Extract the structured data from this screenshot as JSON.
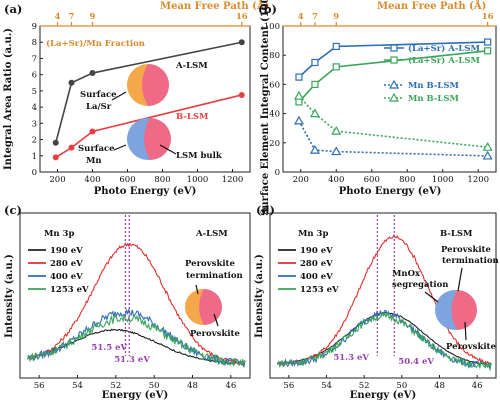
{
  "chart_data": [
    {
      "panel": "(a)",
      "type": "line",
      "top_axis_title": "Mean Free Path (Å)",
      "top_ticks": [
        "4",
        "7",
        "9",
        "16"
      ],
      "top_tick_x": [
        200,
        280,
        400,
        1253
      ],
      "xlabel": "Photo Energy (eV)",
      "ylabel": "Integral Area Ratio (a.u.)",
      "xlim": [
        100,
        1300
      ],
      "ylim": [
        0,
        9
      ],
      "xticks": [
        200,
        400,
        600,
        800,
        1000,
        1200
      ],
      "yticks": [
        0,
        1,
        2,
        3,
        4,
        5,
        6,
        7,
        8,
        9
      ],
      "series": [
        {
          "name": "A-LSM",
          "color": "#444444",
          "x": [
            190,
            280,
            400,
            1253
          ],
          "y": [
            1.8,
            5.5,
            6.1,
            8.0
          ]
        },
        {
          "name": "B-LSM",
          "color": "#e84040",
          "x": [
            190,
            280,
            400,
            1253
          ],
          "y": [
            0.9,
            1.5,
            2.5,
            4.75
          ]
        }
      ],
      "annotations": [
        "(La+Sr)/Mn Fraction",
        "Surface",
        "La/Sr",
        "Surface",
        "Mn",
        "LSM bulk"
      ]
    },
    {
      "panel": "(b)",
      "type": "line",
      "top_axis_title": "Mean Free Path (Å)",
      "top_ticks": [
        "4",
        "7",
        "9",
        "16"
      ],
      "top_tick_x": [
        200,
        280,
        400,
        1253
      ],
      "xlabel": "Photo Energy (eV)",
      "ylabel": "Surface Element Integral Content (100%)",
      "xlim": [
        100,
        1300
      ],
      "ylim": [
        0,
        100
      ],
      "xticks": [
        200,
        400,
        600,
        800,
        1000,
        1200
      ],
      "yticks": [
        0,
        20,
        40,
        60,
        80,
        100
      ],
      "series": [
        {
          "name": "(La+Sr) A-LSM",
          "color": "#2f6db5",
          "marker": "square",
          "dash": false,
          "x": [
            190,
            280,
            400,
            1253
          ],
          "y": [
            65,
            75,
            86,
            89
          ]
        },
        {
          "name": "(La+Sr) A-LSM",
          "color": "#3aa55a",
          "marker": "square",
          "dash": false,
          "x": [
            190,
            280,
            400,
            1253
          ],
          "y": [
            48,
            60,
            72,
            83
          ]
        },
        {
          "name": "Mn B-LSM",
          "color": "#2f6db5",
          "marker": "triangle",
          "dash": true,
          "x": [
            190,
            280,
            400,
            1253
          ],
          "y": [
            35,
            15,
            14,
            11
          ]
        },
        {
          "name": "Mn B-LSM",
          "color": "#3aa55a",
          "marker": "triangle",
          "dash": true,
          "x": [
            190,
            280,
            400,
            1253
          ],
          "y": [
            52,
            40,
            28,
            17
          ]
        }
      ]
    },
    {
      "panel": "(c)",
      "type": "line",
      "xlabel": "Energy (eV)",
      "ylabel": "Intensity (a.u.)",
      "xlim": [
        57,
        45
      ],
      "xticks": [
        56,
        54,
        52,
        50,
        48,
        46
      ],
      "series": [
        {
          "name": "190 eV",
          "color": "#222222"
        },
        {
          "name": "280 eV",
          "color": "#e03030"
        },
        {
          "name": "400 eV",
          "color": "#2f6db5"
        },
        {
          "name": "1253 eV",
          "color": "#3aa55a"
        }
      ],
      "labels": {
        "element": "Mn 3p",
        "sample": "A-LSM",
        "term": [
          "Perovskite",
          "termination"
        ],
        "bulk": "Perovskite"
      },
      "peak_markers": [
        {
          "x": 51.5,
          "label": "51.5 eV"
        },
        {
          "x": 51.3,
          "label": "51.3 eV"
        }
      ]
    },
    {
      "panel": "(d)",
      "type": "line",
      "xlabel": "Energy (eV)",
      "ylabel": "Intensity (a.u.)",
      "xlim": [
        57,
        45
      ],
      "xticks": [
        56,
        54,
        52,
        50,
        48,
        46
      ],
      "series": [
        {
          "name": "190 eV",
          "color": "#222222"
        },
        {
          "name": "280 eV",
          "color": "#e03030"
        },
        {
          "name": "400 eV",
          "color": "#2f6db5"
        },
        {
          "name": "1253 eV",
          "color": "#3aa55a"
        }
      ],
      "labels": {
        "element": "Mn 3p",
        "sample": "B-LSM",
        "term": [
          "Perovskite",
          "termination"
        ],
        "seg": [
          "MnOx",
          "segregation"
        ],
        "bulk": "Perovskite"
      },
      "peak_markers": [
        {
          "x": 51.3,
          "label": "51.3 eV"
        },
        {
          "x": 50.4,
          "label": "50.4 eV"
        }
      ]
    }
  ]
}
